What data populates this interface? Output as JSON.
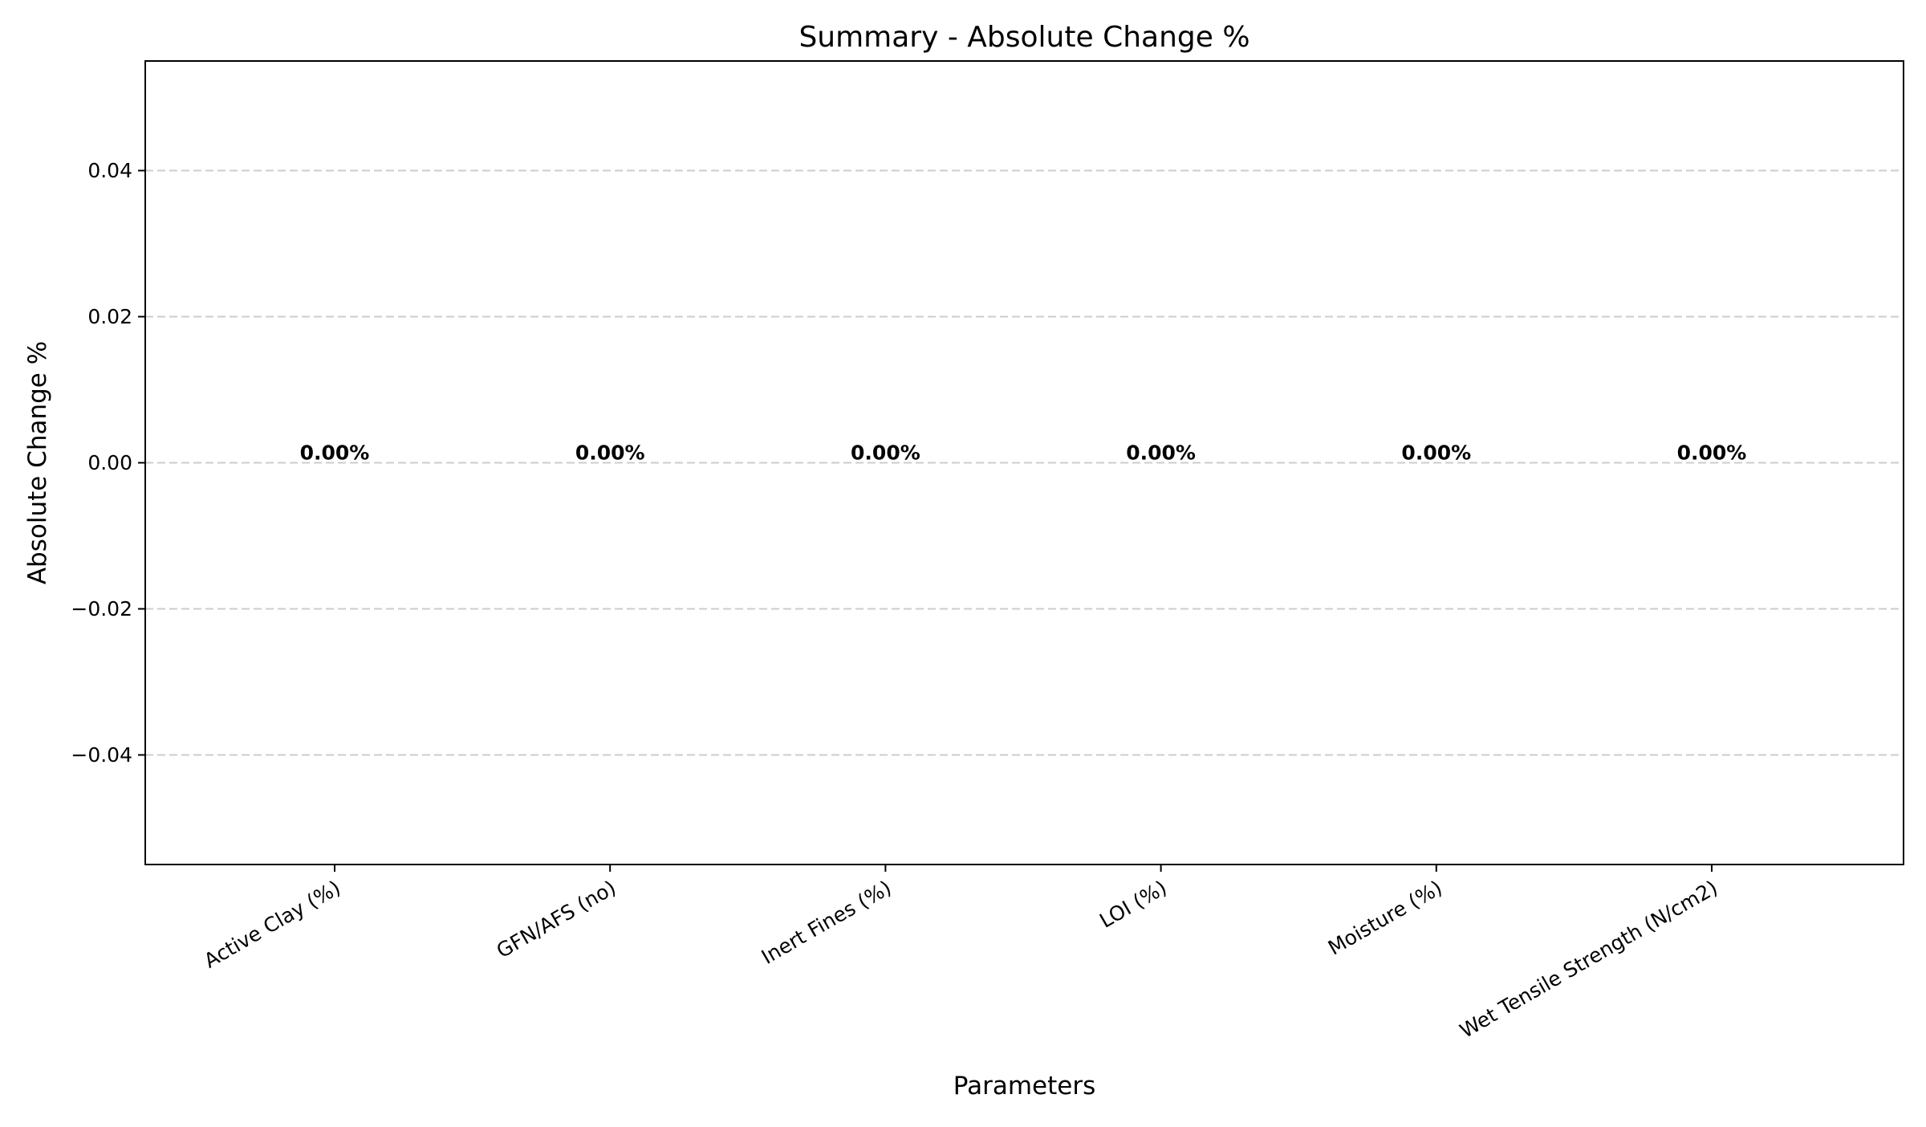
{
  "chart_data": {
    "type": "bar",
    "title": "Summary - Absolute Change %",
    "xlabel": "Parameters",
    "ylabel": "Absolute Change %",
    "categories": [
      "Active Clay (%)",
      "GFN/AFS (no)",
      "Inert Fines (%)",
      "LOI (%)",
      "Moisture (%)",
      "Wet Tensile Strength (N/cm2)"
    ],
    "values": [
      0,
      0,
      0,
      0,
      0,
      0
    ],
    "data_labels": [
      "0.00%",
      "0.00%",
      "0.00%",
      "0.00%",
      "0.00%",
      "0.00%"
    ],
    "ylim": [
      -0.055,
      0.055
    ],
    "yticks": [
      -0.04,
      -0.02,
      0.0,
      0.02,
      0.04
    ],
    "ytick_labels": [
      "−0.04",
      "−0.02",
      "0.00",
      "0.02",
      "0.04"
    ],
    "grid": {
      "axis": "y",
      "style": "dashed",
      "color": "#cccccc"
    },
    "bar_color": "#1f77b4",
    "text_color": "#000000"
  }
}
